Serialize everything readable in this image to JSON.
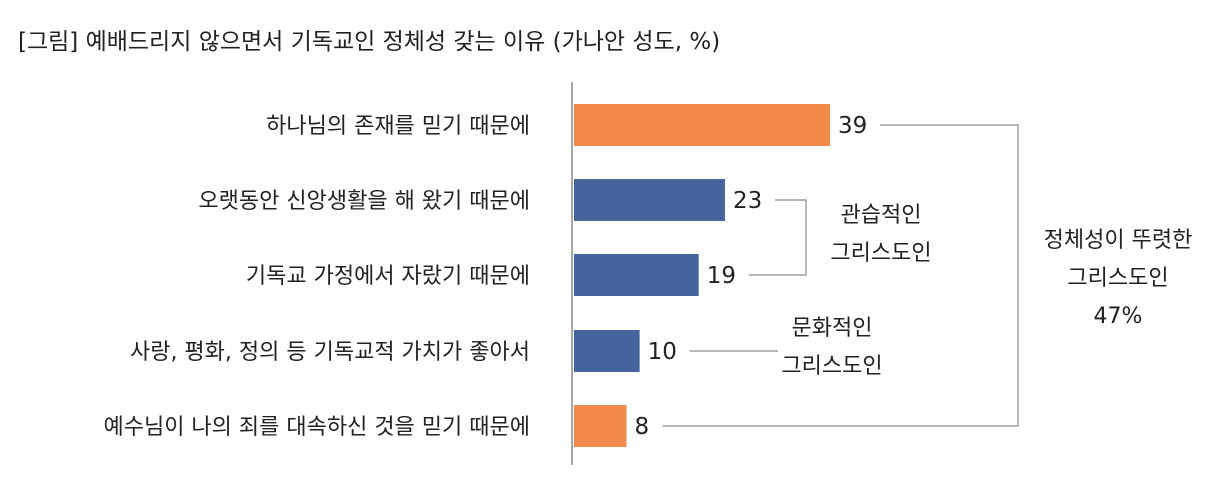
{
  "chart_data": {
    "type": "bar",
    "orientation": "horizontal",
    "title": "[그림] 예배드리지 않으면서 기독교인 정체성 갖는 이유 (가나안 성도, %)",
    "categories": [
      "하나님의 존재를 믿기 때문에",
      "오랫동안 신앙생활을 해 왔기 때문에",
      "기독교 가정에서 자랐기 때문에",
      "사랑, 평화, 정의 등 기독교적 가치가 좋아서",
      "예수님이 나의 죄를 대속하신 것을 믿기 때문에"
    ],
    "values": [
      39,
      23,
      19,
      10,
      8
    ],
    "bar_colors": [
      "#F0894A",
      "#44659E",
      "#44659E",
      "#44659E",
      "#F0894A"
    ],
    "xlim": [
      0,
      39
    ],
    "grid": false,
    "groups": [
      {
        "label_lines": [
          "관습적인",
          "그리스도인"
        ],
        "members": [
          1,
          2
        ]
      },
      {
        "label_lines": [
          "문화적인",
          "그리스도인"
        ],
        "members": [
          3
        ]
      },
      {
        "label_lines": [
          "정체성이 뚜렷한",
          "그리스도인",
          "47%"
        ],
        "members": [
          0,
          4
        ]
      }
    ]
  }
}
